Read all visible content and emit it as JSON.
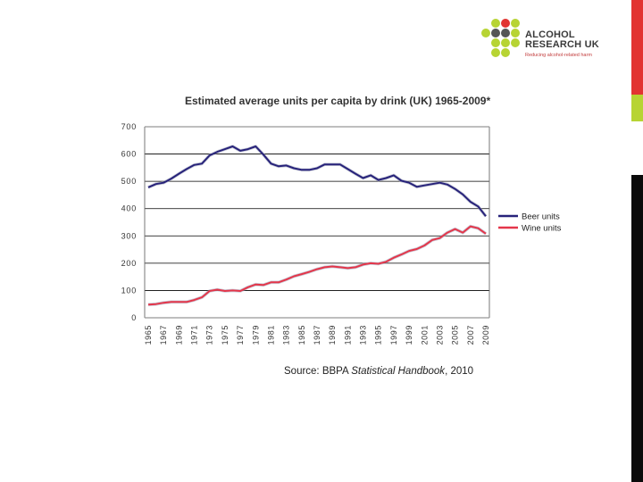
{
  "logo": {
    "line1": "ALCOHOL",
    "line2": "RESEARCH UK",
    "tagline": "Reducing alcohol-related harm",
    "colors": {
      "green": "#b7d433",
      "red": "#e23431",
      "dark": "#555555"
    }
  },
  "source": {
    "prefix": "Source: BBPA ",
    "title": "Statistical Handbook",
    "suffix": ", 2010"
  },
  "chart_data": {
    "type": "line",
    "title": "Estimated average units per capita by drink (UK) 1965-2009*",
    "xlabel": "",
    "ylabel": "",
    "ylim": [
      0,
      700
    ],
    "yticks": [
      0,
      100,
      200,
      300,
      400,
      500,
      600,
      700
    ],
    "grid": true,
    "legend_position": "right",
    "x": [
      1965,
      1966,
      1967,
      1968,
      1969,
      1970,
      1971,
      1972,
      1973,
      1974,
      1975,
      1976,
      1977,
      1978,
      1979,
      1980,
      1981,
      1982,
      1983,
      1984,
      1985,
      1986,
      1987,
      1988,
      1989,
      1990,
      1991,
      1992,
      1993,
      1994,
      1995,
      1996,
      1997,
      1998,
      1999,
      2000,
      2001,
      2002,
      2003,
      2004,
      2005,
      2006,
      2007,
      2008,
      2009
    ],
    "xtick_labels": [
      "1965",
      "1967",
      "1969",
      "1971",
      "1973",
      "1975",
      "1977",
      "1979",
      "1981",
      "1983",
      "1985",
      "1987",
      "1989",
      "1991",
      "1993",
      "1995",
      "1997",
      "1999",
      "2001",
      "2003",
      "2005",
      "2007",
      "2009"
    ],
    "series": [
      {
        "name": "Beer units",
        "color": "#27227a",
        "values": [
          478,
          490,
          495,
          510,
          528,
          545,
          560,
          565,
          595,
          608,
          618,
          628,
          612,
          618,
          628,
          598,
          565,
          555,
          558,
          548,
          542,
          542,
          548,
          562,
          562,
          562,
          545,
          528,
          512,
          522,
          505,
          512,
          522,
          502,
          495,
          480,
          485,
          490,
          495,
          488,
          472,
          452,
          425,
          408,
          372
        ]
      },
      {
        "name": "Wine units",
        "color": "#e4364a",
        "values": [
          48,
          50,
          55,
          58,
          58,
          58,
          65,
          75,
          98,
          103,
          98,
          100,
          98,
          112,
          122,
          120,
          130,
          130,
          140,
          152,
          160,
          168,
          178,
          185,
          188,
          185,
          182,
          185,
          195,
          200,
          198,
          205,
          220,
          232,
          245,
          252,
          265,
          285,
          292,
          312,
          325,
          312,
          335,
          328,
          308
        ]
      }
    ]
  }
}
